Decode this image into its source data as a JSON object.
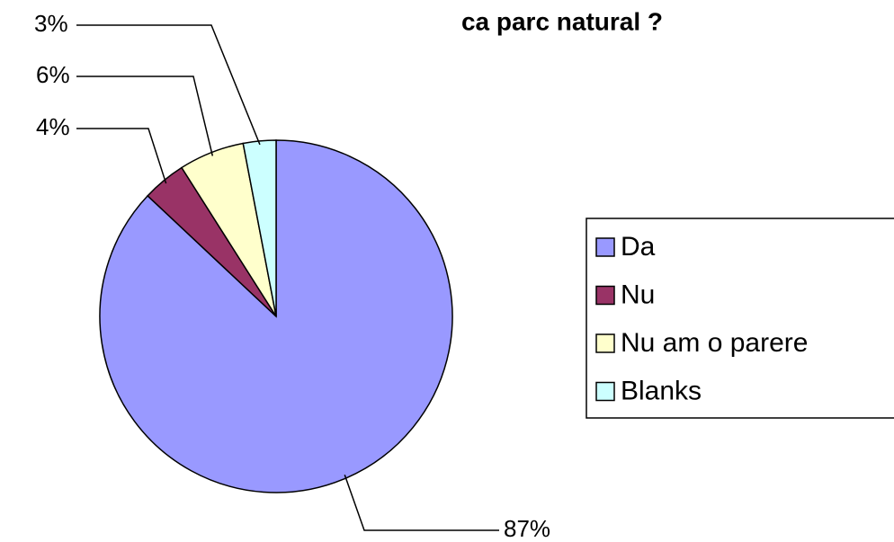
{
  "chart_data": {
    "type": "pie",
    "title": "ca parc natural ?",
    "categories": [
      "Da",
      "Nu",
      "Nu am o parere",
      "Blanks"
    ],
    "values": [
      87,
      4,
      6,
      3
    ],
    "value_labels": [
      "87%",
      "4%",
      "6%",
      "3%"
    ],
    "colors": [
      "#9999ff",
      "#993366",
      "#ffffcc",
      "#ccffff"
    ],
    "legend": "right"
  }
}
